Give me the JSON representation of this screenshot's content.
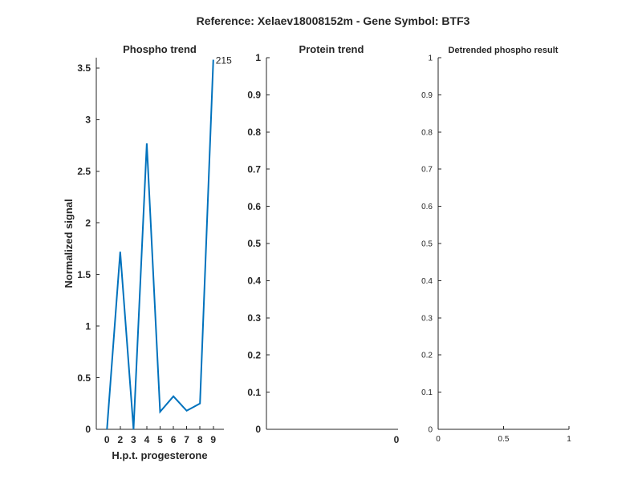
{
  "suptitle": "Reference:  Xelaev18008152m - Gene Symbol:  BTF3",
  "colors": {
    "series": "#0072BD",
    "axis": "#262626",
    "background": "#ffffff"
  },
  "chart_data": [
    {
      "type": "line",
      "title": "Phospho trend",
      "xlabel": "H.p.t. progesterone",
      "ylabel": "Normalized signal",
      "x": [
        0,
        2,
        3,
        4,
        5,
        6,
        7,
        8,
        9
      ],
      "xtick_labels": [
        "0",
        "2",
        "3",
        "4",
        "5",
        "6",
        "7",
        "8",
        "9"
      ],
      "series": [
        {
          "values": [
            0,
            1.72,
            0,
            2.77,
            0.17,
            0.32,
            0.18,
            0.25,
            3.58
          ]
        }
      ],
      "end_label": "215",
      "ylim": [
        0,
        3.6
      ],
      "yticks": [
        0,
        0.5,
        1,
        1.5,
        2,
        2.5,
        3,
        3.5
      ],
      "ytick_labels": [
        "0",
        "0.5",
        "1",
        "1.5",
        "2",
        "2.5",
        "3",
        "3.5"
      ],
      "grid": false
    },
    {
      "type": "line",
      "title": "Protein trend",
      "xlabel": "",
      "ylabel": "",
      "x": [],
      "series": [],
      "xtick_labels": [
        "0"
      ],
      "ylim": [
        0,
        1
      ],
      "yticks": [
        0,
        0.1,
        0.2,
        0.3,
        0.4,
        0.5,
        0.6,
        0.7,
        0.8,
        0.9,
        1
      ],
      "ytick_labels": [
        "0",
        "0.1",
        "0.2",
        "0.3",
        "0.4",
        "0.5",
        "0.6",
        "0.7",
        "0.8",
        "0.9",
        "1"
      ],
      "grid": false
    },
    {
      "type": "line",
      "title": "Detrended phospho result",
      "xlabel": "",
      "ylabel": "",
      "x": [],
      "series": [],
      "xlim": [
        0,
        1
      ],
      "xticks": [
        0,
        0.5,
        1
      ],
      "xtick_labels": [
        "0",
        "0.5",
        "1"
      ],
      "ylim": [
        0,
        1
      ],
      "yticks": [
        0,
        0.1,
        0.2,
        0.3,
        0.4,
        0.5,
        0.6,
        0.7,
        0.8,
        0.9,
        1
      ],
      "ytick_labels": [
        "0",
        "0.1",
        "0.2",
        "0.3",
        "0.4",
        "0.5",
        "0.6",
        "0.7",
        "0.8",
        "0.9",
        "1"
      ],
      "grid": false
    }
  ]
}
